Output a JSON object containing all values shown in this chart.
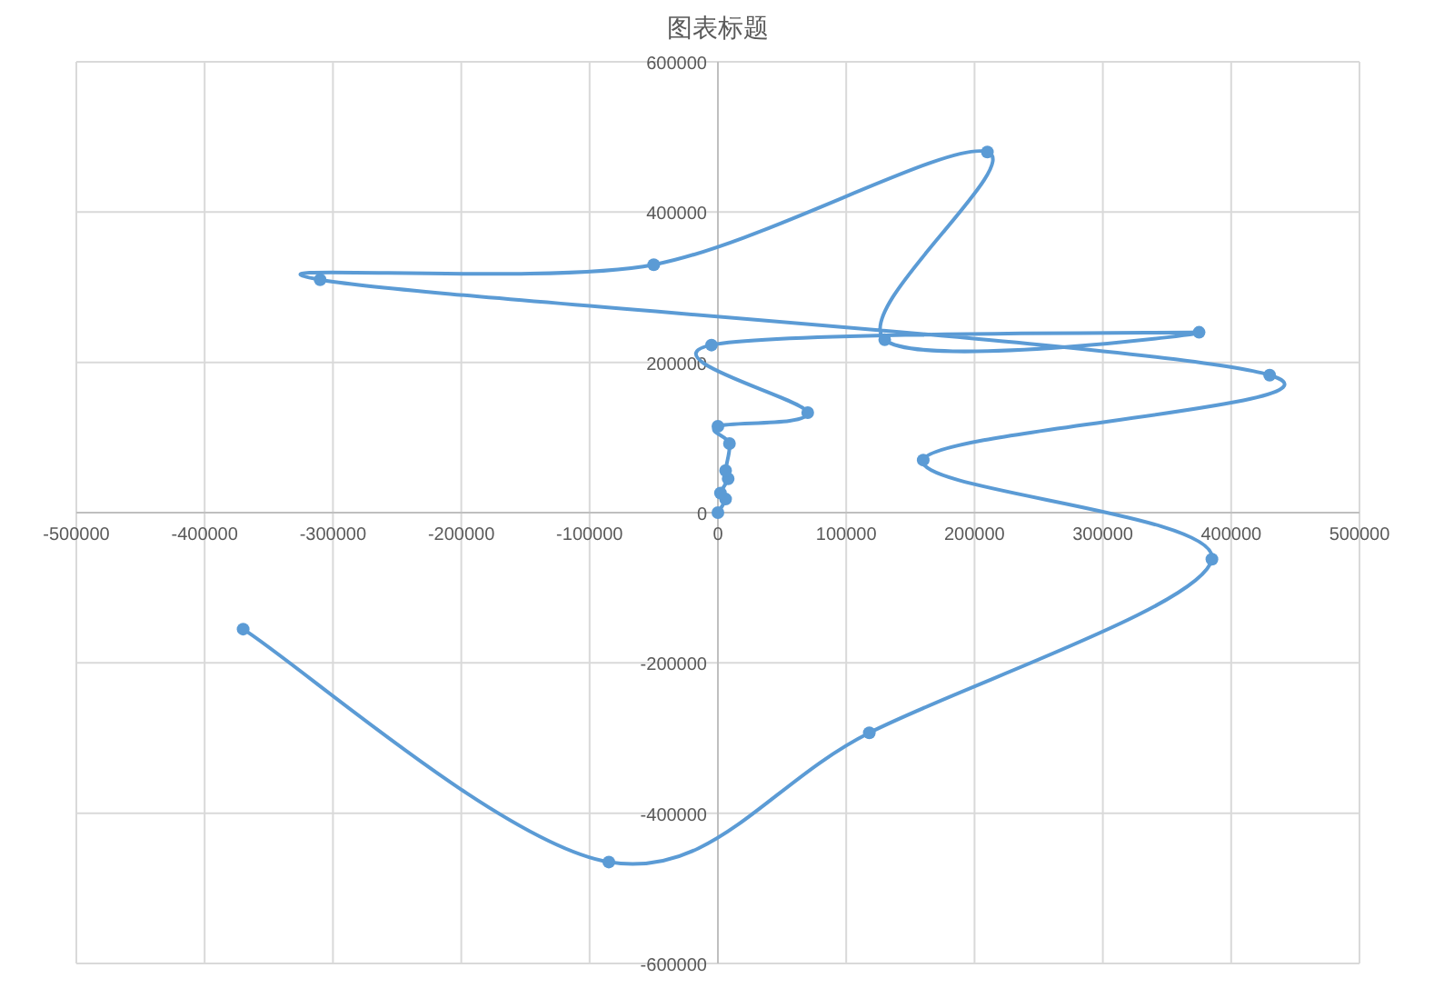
{
  "chart_data": {
    "type": "line",
    "title": "图表标题",
    "x": [
      0,
      6000,
      2000,
      8000,
      6000,
      9000,
      0,
      70000,
      -5000,
      375000,
      130000,
      210000,
      -50000,
      -310000,
      430000,
      160000,
      385000,
      118000,
      -85000,
      -370000
    ],
    "series": [
      {
        "color": "#5b9bd5",
        "values": [
          0,
          18000,
          26000,
          45000,
          56000,
          92000,
          115000,
          133000,
          223000,
          240000,
          230000,
          480000,
          330000,
          310000,
          183000,
          70000,
          -62000,
          -293000,
          -465000,
          -155000
        ]
      }
    ],
    "xlim": [
      -500000,
      500000
    ],
    "ylim": [
      -600000,
      600000
    ],
    "xticks": [
      -500000,
      -400000,
      -300000,
      -200000,
      -100000,
      0,
      100000,
      200000,
      300000,
      400000,
      500000
    ],
    "yticks": [
      -600000,
      -400000,
      -200000,
      0,
      200000,
      400000,
      600000
    ],
    "grid": true,
    "marker": "circle",
    "line_style": "solid"
  }
}
